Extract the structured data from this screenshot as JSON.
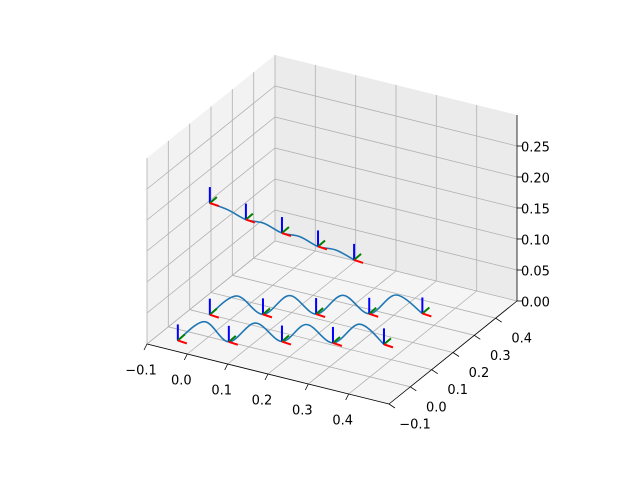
{
  "chart_data": {
    "type": "line",
    "projection": "3d",
    "title": "",
    "xlabel": "",
    "ylabel": "",
    "zlabel": "",
    "grid": true,
    "legend": "none",
    "xlim": [
      -0.1,
      0.5
    ],
    "ylim": [
      -0.1,
      0.5
    ],
    "zlim": [
      0.0,
      0.3
    ],
    "x_ticks": [
      "−0.1",
      "0.0",
      "0.1",
      "0.2",
      "0.3",
      "0.4"
    ],
    "y_ticks": [
      "−0.1",
      "0.0",
      "0.1",
      "0.2",
      "0.3",
      "0.4"
    ],
    "z_ticks": [
      "0.00",
      "0.05",
      "0.10",
      "0.15",
      "0.20",
      "0.25"
    ],
    "colors": {
      "trajectory": "#1f77b4",
      "frame_x": "#ff0000",
      "frame_y": "#008000",
      "frame_z": "#0000ff",
      "pane_x": "#f2f2f2",
      "pane_y": "#ebebeb",
      "pane_z": "#f5f5f5"
    },
    "series": [
      {
        "points": [
          [
            -0.05,
            0.1,
            0.18
          ],
          [
            0.0,
            0.09,
            0.18
          ],
          [
            0.05,
            0.08,
            0.175
          ],
          [
            0.1,
            0.07,
            0.18
          ],
          [
            0.15,
            0.06,
            0.175
          ],
          [
            0.2,
            0.05,
            0.18
          ],
          [
            0.25,
            0.04,
            0.175
          ],
          [
            0.3,
            0.03,
            0.18
          ],
          [
            0.35,
            0.02,
            0.175
          ]
        ]
      },
      {
        "points": [
          [
            -0.05,
            -0.05,
            0.0
          ],
          [
            0.0,
            -0.02,
            0.03
          ],
          [
            0.05,
            0.0,
            0.0
          ],
          [
            0.1,
            0.03,
            0.03
          ],
          [
            0.15,
            0.06,
            0.0
          ],
          [
            0.2,
            0.08,
            0.03
          ],
          [
            0.25,
            0.11,
            0.0
          ],
          [
            0.3,
            0.14,
            0.03
          ],
          [
            0.35,
            0.16,
            0.0
          ]
        ]
      },
      {
        "points": [
          [
            -0.05,
            0.1,
            0.0
          ],
          [
            0.0,
            0.13,
            0.03
          ],
          [
            0.05,
            0.16,
            0.0
          ],
          [
            0.1,
            0.19,
            0.03
          ],
          [
            0.15,
            0.22,
            0.0
          ],
          [
            0.2,
            0.25,
            0.03
          ],
          [
            0.25,
            0.28,
            0.0
          ],
          [
            0.3,
            0.31,
            0.03
          ],
          [
            0.35,
            0.34,
            0.0
          ]
        ]
      }
    ],
    "frames": [
      [
        -0.05,
        0.1,
        0.18
      ],
      [
        0.05,
        0.08,
        0.175
      ],
      [
        0.15,
        0.06,
        0.175
      ],
      [
        0.25,
        0.04,
        0.175
      ],
      [
        0.35,
        0.02,
        0.175
      ],
      [
        -0.05,
        -0.05,
        0.0
      ],
      [
        0.05,
        0.0,
        0.0
      ],
      [
        0.15,
        0.06,
        0.0
      ],
      [
        0.25,
        0.11,
        0.0
      ],
      [
        0.35,
        0.16,
        0.0
      ],
      [
        -0.05,
        0.1,
        0.0
      ],
      [
        0.05,
        0.16,
        0.0
      ],
      [
        0.15,
        0.22,
        0.0
      ],
      [
        0.25,
        0.28,
        0.0
      ],
      [
        0.35,
        0.34,
        0.0
      ]
    ]
  }
}
